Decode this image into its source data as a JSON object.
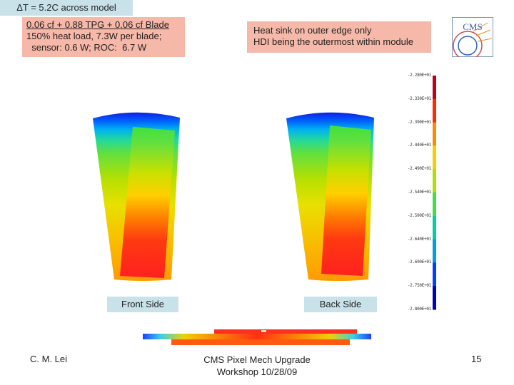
{
  "spec": {
    "line1": "0.06 cf + 0.88 TPG + 0.06 cf Blade",
    "line2": "150% heat load, 7.3W per blade;",
    "line3": "  sensor: 0.6 W; ROC:  6.7 W"
  },
  "heatsink": {
    "line1": "Heat sink on outer edge only",
    "line2": "HDI being the outermost within module"
  },
  "delta_t": "ΔT = 5.2C across model",
  "labels": {
    "front": "Front Side",
    "back": "Back Side"
  },
  "scale": {
    "ticks": [
      "-2.280E+01",
      "-2.330E+01",
      "-2.390E+01",
      "-2.440E+01",
      "-2.490E+01",
      "-2.540E+01",
      "-2.590E+01",
      "-2.640E+01",
      "-2.690E+01",
      "-2.750E+01",
      "-2.800E+01"
    ],
    "colors": [
      "#c0001a",
      "#ff2a00",
      "#ff8a00",
      "#f2d000",
      "#b0e000",
      "#40e040",
      "#00d0a0",
      "#00a0e0",
      "#0040ff",
      "#0000c0"
    ]
  },
  "logo_text": "CMS",
  "footer": {
    "author": "C. M. Lei",
    "title_line1": "CMS Pixel Mech Upgrade",
    "title_line2": "Workshop 10/28/09",
    "page": "15"
  }
}
